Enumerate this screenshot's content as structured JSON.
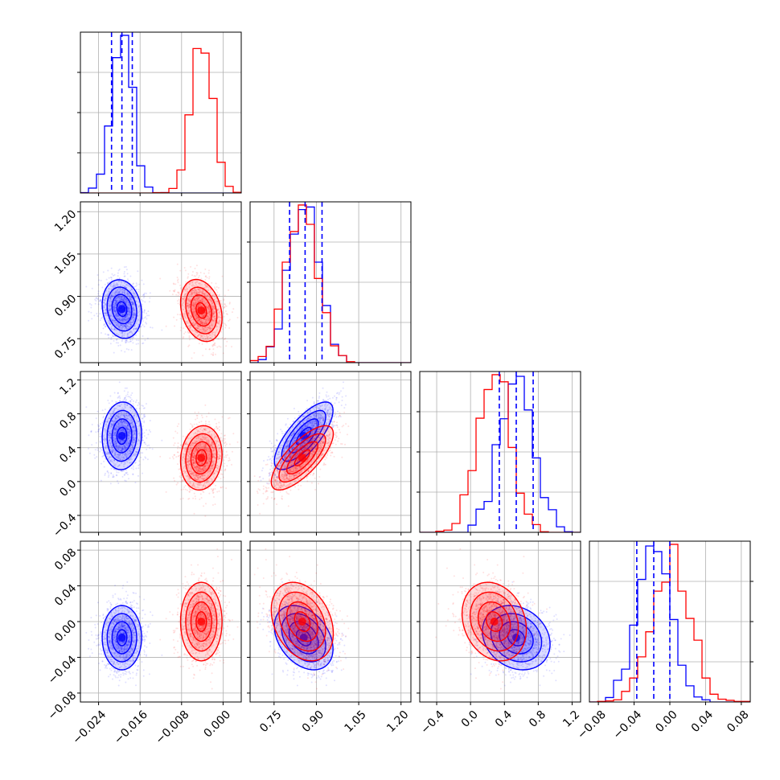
{
  "chart_data": {
    "type": "corner",
    "title": "",
    "grid": true,
    "series_colors": [
      "#0000ff",
      "#ff0000"
    ],
    "parameters": [
      {
        "range": [
          -0.0275,
          0.0035
        ],
        "ticks": [
          -0.024,
          -0.016,
          -0.008,
          0.0
        ],
        "tick_labels": [
          "−0.024",
          "−0.016",
          "−0.008",
          "0.000"
        ]
      },
      {
        "range": [
          0.665,
          1.235
        ],
        "ticks": [
          0.75,
          0.9,
          1.05,
          1.2
        ],
        "tick_labels": [
          "0.75",
          "0.90",
          "1.05",
          "1.20"
        ]
      },
      {
        "range": [
          -0.6,
          1.3
        ],
        "ticks": [
          -0.4,
          0.0,
          0.4,
          0.8,
          1.2
        ],
        "tick_labels": [
          "−0.4",
          "0.0",
          "0.4",
          "0.8",
          "1.2"
        ]
      },
      {
        "range": [
          -0.09,
          0.09
        ],
        "ticks": [
          -0.08,
          -0.04,
          0.0,
          0.04,
          0.08
        ],
        "tick_labels": [
          "−0.08",
          "−0.04",
          "0.00",
          "0.04",
          "0.08"
        ]
      }
    ],
    "series": [
      {
        "color": "#0000ff",
        "means": [
          -0.0195,
          0.855,
          0.54,
          -0.018
        ],
        "sds": [
          0.0019,
          0.052,
          0.2,
          0.018
        ],
        "correlations": [
          [
            0,
            1,
            -0.15
          ],
          [
            0,
            2,
            0.05
          ],
          [
            0,
            3,
            0.0
          ],
          [
            1,
            2,
            0.75
          ],
          [
            1,
            3,
            -0.35
          ],
          [
            2,
            3,
            -0.2
          ]
        ],
        "quantiles": [
          [
            -0.0215,
            -0.0195,
            -0.0175
          ],
          [
            0.805,
            0.86,
            0.92
          ],
          [
            0.34,
            0.54,
            0.74
          ],
          [
            -0.037,
            -0.018,
            0.0
          ]
        ]
      },
      {
        "color": "#ff0000",
        "means": [
          -0.0042,
          0.85,
          0.28,
          0.0
        ],
        "sds": [
          0.002,
          0.055,
          0.19,
          0.022
        ],
        "correlations": [
          [
            0,
            1,
            -0.25
          ],
          [
            0,
            2,
            0.1
          ],
          [
            0,
            3,
            0.0
          ],
          [
            1,
            2,
            0.75
          ],
          [
            1,
            3,
            -0.3
          ],
          [
            2,
            3,
            -0.2
          ]
        ]
      }
    ]
  }
}
